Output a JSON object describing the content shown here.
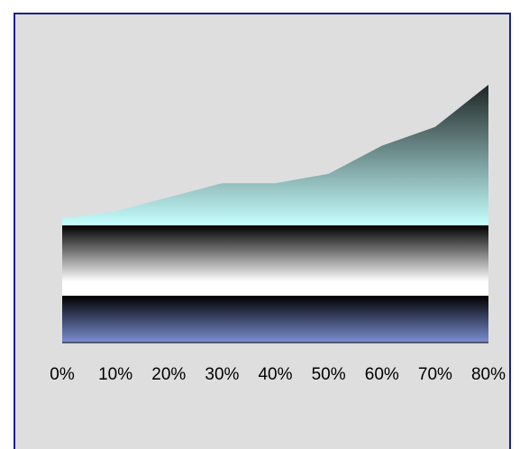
{
  "chart_data": {
    "type": "area",
    "x": [
      "0%",
      "10%",
      "20%",
      "30%",
      "40%",
      "50%",
      "60%",
      "70%",
      "80%"
    ],
    "series": [
      {
        "values": [
          20,
          20,
          20,
          20,
          20,
          20,
          20,
          20,
          20
        ]
      },
      {
        "values": [
          30,
          30,
          30,
          30,
          30,
          30,
          30,
          30,
          30
        ]
      },
      {
        "values": [
          3,
          6,
          12,
          18,
          18,
          22,
          34,
          42,
          60
        ]
      }
    ],
    "stacked": true,
    "ylim": [
      0,
      110
    ],
    "grid": false,
    "legend": "none",
    "colors": {
      "series_1_top": "#000000",
      "series_1_bottom": "#7b8fd3",
      "series_2_top": "#000000",
      "series_2_mid": "#ffffff",
      "series_3_top": "#1e2525",
      "series_3_bottom": "#c6ffff",
      "plot_background": "#dedede",
      "frame_border": "#1c1f8e"
    }
  }
}
